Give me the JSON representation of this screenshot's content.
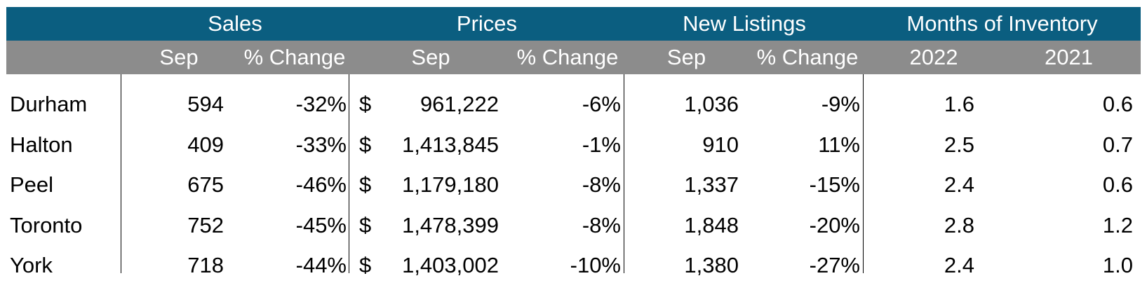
{
  "header": {
    "groups": [
      "Sales",
      "Prices",
      "New Listings",
      "Months of Inventory"
    ],
    "subheaders": [
      "Sep",
      "% Change",
      "Sep",
      "% Change",
      "Sep",
      "% Change",
      "2022",
      "2021"
    ]
  },
  "colors": {
    "header_top": "#0b5e80",
    "header_sub": "#8c8c8c",
    "text": "#000000"
  },
  "chart_data": {
    "type": "table",
    "columns": [
      "",
      "Sales Sep",
      "Sales % Change",
      "Prices Sep",
      "Prices % Change",
      "New Listings Sep",
      "New Listings % Change",
      "Months of Inventory 2022",
      "Months of Inventory 2021"
    ],
    "rows": [
      {
        "region": "Durham",
        "sales": "594",
        "sales_change": "-32%",
        "currency": "$",
        "price": "961,222",
        "price_change": "-6%",
        "listings": "1,036",
        "listings_change": "-9%",
        "moi_2022": "1.6",
        "moi_2021": "0.6"
      },
      {
        "region": "Halton",
        "sales": "409",
        "sales_change": "-33%",
        "currency": "$",
        "price": "1,413,845",
        "price_change": "-1%",
        "listings": "910",
        "listings_change": "11%",
        "moi_2022": "2.5",
        "moi_2021": "0.7"
      },
      {
        "region": "Peel",
        "sales": "675",
        "sales_change": "-46%",
        "currency": "$",
        "price": "1,179,180",
        "price_change": "-8%",
        "listings": "1,337",
        "listings_change": "-15%",
        "moi_2022": "2.4",
        "moi_2021": "0.6"
      },
      {
        "region": "Toronto",
        "sales": "752",
        "sales_change": "-45%",
        "currency": "$",
        "price": "1,478,399",
        "price_change": "-8%",
        "listings": "1,848",
        "listings_change": "-20%",
        "moi_2022": "2.8",
        "moi_2021": "1.2"
      },
      {
        "region": "York",
        "sales": "718",
        "sales_change": "-44%",
        "currency": "$",
        "price": "1,403,002",
        "price_change": "-10%",
        "listings": "1,380",
        "listings_change": "-27%",
        "moi_2022": "2.4",
        "moi_2021": "1.0"
      }
    ]
  }
}
